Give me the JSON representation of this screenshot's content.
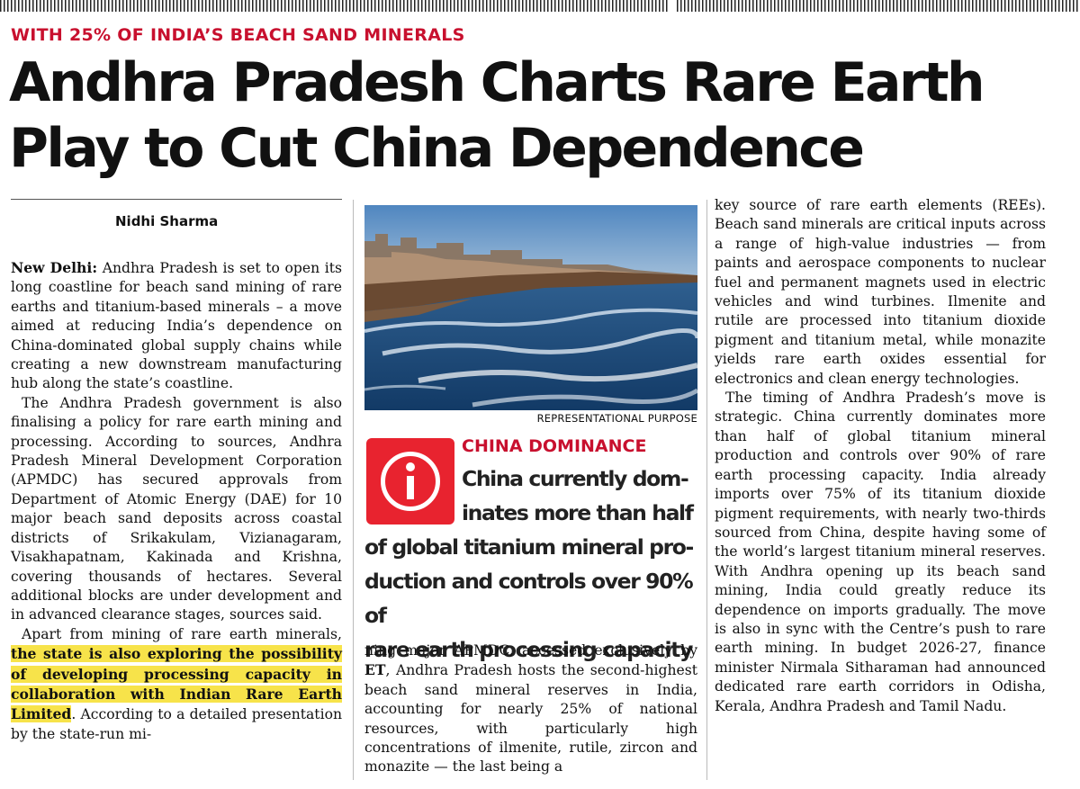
{
  "kicker": "WITH 25% OF INDIA’S BEACH SAND MINERALS",
  "headline": [
    "Andhra Pradesh Charts Rare Earth",
    "Play to Cut China Dependence"
  ],
  "byline": "Nidhi Sharma",
  "col1": {
    "p1_dateline": "New Delhi:",
    "p1_text": " Andhra Pradesh is set to open its long coastline for beach sand mining of rare earths and titanium-based minerals – a move aimed at reducing India’s dependence on China-dominated global supply chains while creating a new downstream manufacturing hub along the state’s coastline.",
    "p2_text": "The Andhra Pradesh government is also finalising a policy for rare earth mining and processing. According to sources, Andhra Pradesh Mineral Development Corporation (APMDC) has secured approvals from Department of Atomic Energy (DAE) for 10 major beach sand deposits across coastal districts of Srikakulam, Vizianagaram, Visakhapatnam, Kakinada and Krishna, covering thousands of hectares. Several additional blocks are under development and in advanced clearance stages, sources said.",
    "p3_lead": "Apart from mining of rare earth minerals, ",
    "p3_highlight": "the state is also exploring the possibility of developing processing capacity in collaboration with Indian Rare Earth Limited",
    "p3_tail": ". According to a detailed presentation by the state-run mi-"
  },
  "photo": {
    "caption": "REPRESENTATIONAL PURPOSE",
    "sky_color": "#5f8fbf",
    "sea_color": "#1d4f7f",
    "sand_color": "#6a4a32"
  },
  "info_box": {
    "icon": "info-icon",
    "title": "CHINA DOMINANCE",
    "lines": [
      "China currently dom-",
      "inates more than half",
      "of global titanium mineral pro-",
      "duction and controls over 90% of",
      "rare earth processing capacity"
    ],
    "accent_color": "#e8232f"
  },
  "col2": {
    "text_lead": "ning major APMDC, accessed exclusively by ",
    "text_et": "ET",
    "text_tail": ", Andhra Pradesh hosts the second-highest beach sand mineral reserves in India, accounting for nearly 25% of national resources, with particularly high concentrations of ilmenite, rutile, zircon and monazite — the last being a"
  },
  "col3": {
    "p1_text": "key source of rare earth elements (REEs). Beach sand minerals are critical inputs across a range of high-value industries — from paints and aerospace components to nuclear fuel and permanent magnets used in electric vehicles and wind turbines. Ilmenite and rutile are processed into titanium dioxide pigment and titanium metal, while monazite yields rare earth oxides essential for electronics and clean energy technologies.",
    "p2_text": "The timing of Andhra Pradesh’s move is strategic. China currently dominates more than half of global titanium mineral production and controls over 90% of rare earth processing capacity. India already imports over 75% of its titanium dioxide pigment requirements, with nearly two-thirds sourced from China, despite having some of the world’s largest titanium mineral reserves. With Andhra opening up its beach sand mining, India could greatly reduce its dependence on imports gradually. The move is also in sync with the Centre’s push to rare earth mining. In budget 2026-27, finance minister Nirmala Sitharaman had announced dedicated rare earth corridors in Odisha, Kerala, Andhra Pradesh and Tamil Nadu."
  }
}
